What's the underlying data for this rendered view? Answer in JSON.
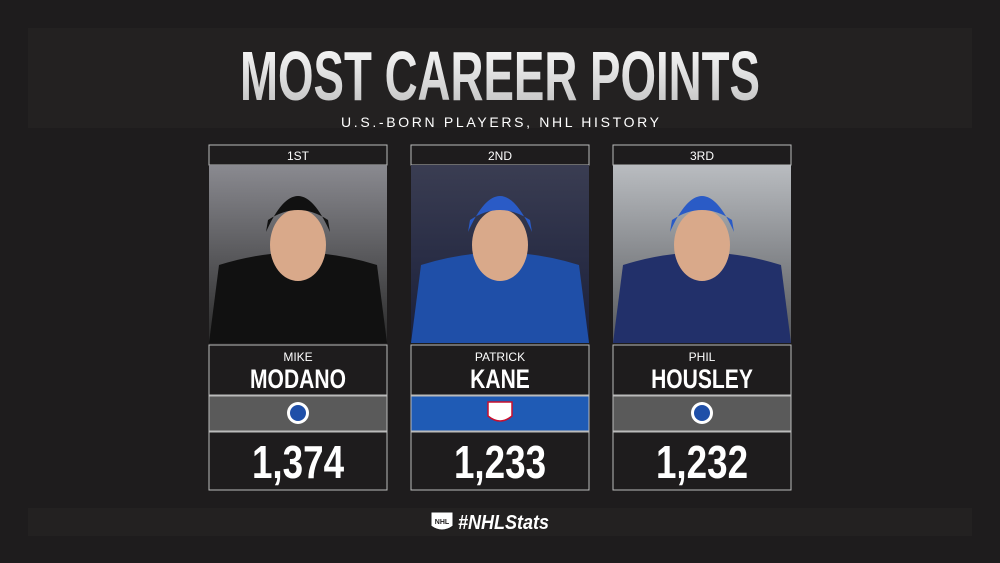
{
  "header": {
    "title": "MOST CAREER POINTS",
    "subtitle": "U.S.-BORN PLAYERS, NHL HISTORY"
  },
  "players": [
    {
      "rank": "1ST",
      "first_name": "MIKE",
      "last_name": "MODANO",
      "points": "1,374"
    },
    {
      "rank": "2ND",
      "first_name": "PATRICK",
      "last_name": "KANE",
      "points": "1,233"
    },
    {
      "rank": "3RD",
      "first_name": "PHIL",
      "last_name": "HOUSLEY",
      "points": "1,232"
    }
  ],
  "footer": {
    "logo": "NHL",
    "hashtag": "#NHLStats"
  }
}
